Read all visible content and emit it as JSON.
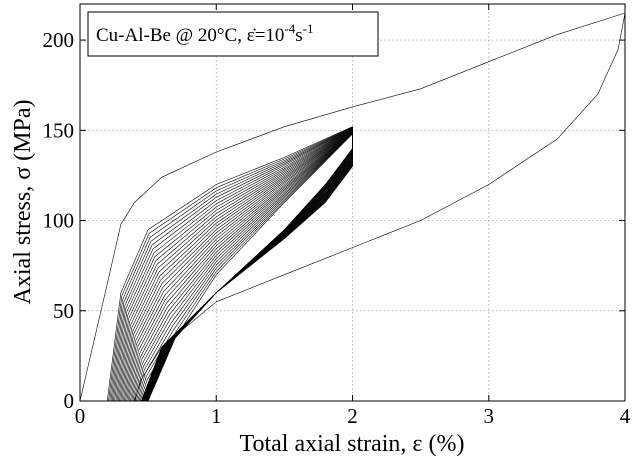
{
  "chart_data": {
    "type": "line",
    "annotation": {
      "base": "Cu-Al-Be @ 20°C, ",
      "rate_symbol": "ε̇",
      "equals": "=10",
      "exp1": "-4",
      "unit": "s",
      "exp2": "-1"
    },
    "xlabel": "Total axial strain, ε (%)",
    "ylabel": "Axial stress, σ (MPa)",
    "xlim": [
      0,
      4
    ],
    "ylim": [
      0,
      220
    ],
    "xticks": [
      "0",
      "1",
      "2",
      "3",
      "4"
    ],
    "yticks": [
      "0",
      "50",
      "100",
      "150",
      "200"
    ],
    "grid": true,
    "series": [
      {
        "role": "first loading to 4%",
        "x": [
          0,
          0.2,
          0.3,
          0.4,
          0.6,
          1.0,
          1.5,
          2.0,
          2.5,
          3.0,
          3.5,
          4.0
        ],
        "y": [
          0,
          65,
          98,
          110,
          124,
          138,
          152,
          163,
          173,
          188,
          203,
          215
        ]
      },
      {
        "role": "unloading from 4%",
        "x": [
          4.0,
          3.95,
          3.8,
          3.5,
          3.0,
          2.5,
          2.0,
          1.5,
          1.0,
          0.6,
          0.45,
          0.4
        ],
        "y": [
          215,
          195,
          170,
          145,
          120,
          100,
          85,
          70,
          55,
          30,
          12,
          0
        ]
      },
      {
        "role": "cycles to 2% (first)",
        "x": [
          0.2,
          0.3,
          0.5,
          1.0,
          1.5,
          2.0,
          2.0,
          1.8,
          1.5,
          1.0,
          0.6,
          0.45
        ],
        "y": [
          0,
          60,
          95,
          120,
          135,
          152,
          130,
          110,
          90,
          60,
          30,
          0
        ]
      },
      {
        "role": "cycles to 2% (stabilized)",
        "x": [
          0.45,
          0.5,
          0.7,
          1.0,
          1.5,
          2.0,
          2.0,
          1.8,
          1.5,
          1.0,
          0.7,
          0.5
        ],
        "y": [
          0,
          10,
          35,
          70,
          110,
          148,
          140,
          120,
          95,
          60,
          35,
          0
        ]
      }
    ]
  }
}
